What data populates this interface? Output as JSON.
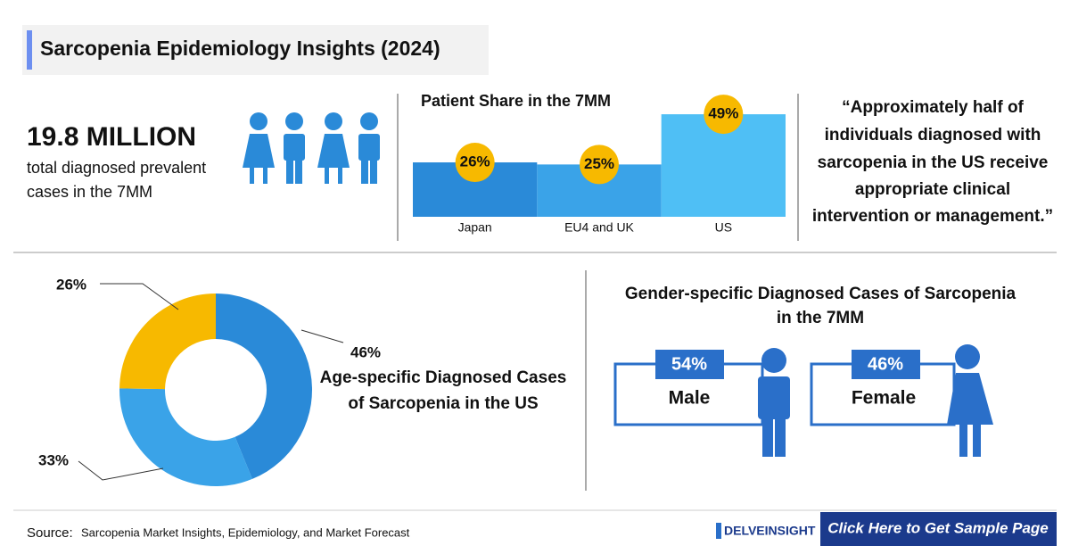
{
  "header": {
    "title": "Sarcopenia Epidemiology Insights (2024)"
  },
  "stat": {
    "value": "19.8 MILLION",
    "caption_lines": [
      "total diagnosed prevalent",
      "cases in the 7MM"
    ]
  },
  "chart_data": [
    {
      "type": "bar",
      "title": "Patient Share in the 7MM",
      "categories": [
        "Japan",
        "EU4 and UK",
        "US"
      ],
      "values": [
        26,
        25,
        49
      ],
      "value_labels": [
        "26%",
        "25%",
        "49%"
      ],
      "colors": [
        "#2a8ad8",
        "#3aa3e8",
        "#4fbff5"
      ],
      "label_color": "#f7b900",
      "ylim": [
        0,
        55
      ]
    },
    {
      "type": "donut",
      "title_lines": [
        "Age-specific Diagnosed Cases",
        "of Sarcopenia in the US"
      ],
      "values": [
        46,
        33,
        26
      ],
      "value_labels": [
        "46%",
        "33%",
        "26%"
      ],
      "colors": [
        "#2a8ad8",
        "#3aa3e8",
        "#f7b900"
      ]
    }
  ],
  "quote": {
    "lines": [
      "“Approximately half of",
      "individuals diagnosed with",
      "sarcopenia in the US receive",
      "appropriate clinical",
      "intervention or management.”"
    ]
  },
  "gender": {
    "title_lines": [
      "Gender-specific Diagnosed Cases of Sarcopenia",
      "in the 7MM"
    ],
    "items": [
      {
        "value_label": "54%",
        "label": "Male"
      },
      {
        "value_label": "46%",
        "label": "Female"
      }
    ]
  },
  "footer": {
    "source_label": "Source:",
    "source": "Sarcopenia Market Insights, Epidemiology, and Market Forecast",
    "brand": "DELVEINSIGHT",
    "cta": "Click Here to Get Sample Page"
  }
}
